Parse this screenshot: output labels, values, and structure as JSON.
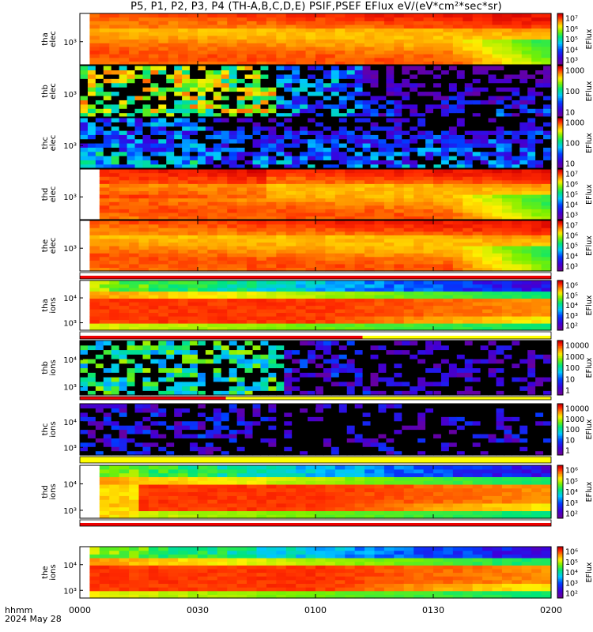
{
  "title": "P5, P1, P2, P3, P4 (TH-A,B,C,D,E) PSIF,PSEF EFlux eV/(eV*cm²*sec*sr)",
  "footer": {
    "line1": "hhmm",
    "line2": "2024 May 28"
  },
  "chart_data": {
    "type": "heatmap",
    "x_tick_labels": [
      "0000",
      "0030",
      "0100",
      "0130",
      "0200"
    ],
    "panels": [
      {
        "ylabel": [
          "tha",
          "elec"
        ],
        "yticks": [
          "10³"
        ],
        "colorbar_ticks": [
          "10⁷",
          "10⁶",
          "10⁵",
          "10⁴",
          "10³"
        ],
        "colorbar_label": "EFlux",
        "style": "elec_dense"
      },
      {
        "ylabel": [
          "thb",
          "elec"
        ],
        "yticks": [
          "10³"
        ],
        "colorbar_ticks": [
          "1000",
          "100",
          "10"
        ],
        "colorbar_label": "EFlux",
        "style": "noisy_elec"
      },
      {
        "ylabel": [
          "thc",
          "elec"
        ],
        "yticks": [
          "10³"
        ],
        "colorbar_ticks": [
          "1000",
          "100",
          "10"
        ],
        "colorbar_label": "EFlux",
        "style": "sparse_elec"
      },
      {
        "ylabel": [
          "thd",
          "elec"
        ],
        "yticks": [
          "10³"
        ],
        "colorbar_ticks": [
          "10⁷",
          "10⁶",
          "10⁵",
          "10⁴",
          "10³"
        ],
        "colorbar_label": "EFlux",
        "style": "elec_dense_gap"
      },
      {
        "ylabel": [
          "the",
          "elec"
        ],
        "yticks": [
          "10³"
        ],
        "colorbar_ticks": [
          "10⁷",
          "10⁶",
          "10⁵",
          "10⁴",
          "10³"
        ],
        "colorbar_label": "EFlux",
        "style": "elec_dense"
      },
      {
        "ylabel": [
          "tha",
          "ions"
        ],
        "yticks": [
          "10⁴",
          "10³"
        ],
        "colorbar_ticks": [
          "10⁶",
          "10⁵",
          "10⁴",
          "10³",
          "10²"
        ],
        "colorbar_label": "EFlux",
        "style": "ions_dense"
      },
      {
        "ylabel": [
          "thb",
          "ions"
        ],
        "yticks": [
          "10⁴",
          "10³"
        ],
        "colorbar_ticks": [
          "10000",
          "1000",
          "100",
          "10",
          "1"
        ],
        "colorbar_label": "EFlux",
        "style": "noisy_ions"
      },
      {
        "ylabel": [
          "thc",
          "ions"
        ],
        "yticks": [
          "10⁴",
          "10³"
        ],
        "colorbar_ticks": [
          "10000",
          "1000",
          "100",
          "10",
          "1"
        ],
        "colorbar_label": "EFlux",
        "style": "sparse_ions"
      },
      {
        "ylabel": [
          "thd",
          "ions"
        ],
        "yticks": [
          "10⁴",
          "10³"
        ],
        "colorbar_ticks": [
          "10⁶",
          "10⁵",
          "10⁴",
          "10³",
          "10²"
        ],
        "colorbar_label": "EFlux",
        "style": "ions_dense_gap"
      },
      {
        "ylabel": [
          "the",
          "ions"
        ],
        "yticks": [
          "10⁴",
          "10³"
        ],
        "colorbar_ticks": [
          "10⁶",
          "10⁵",
          "10⁴",
          "10³",
          "10²"
        ],
        "colorbar_label": "EFlux",
        "style": "ions_dense"
      }
    ]
  }
}
